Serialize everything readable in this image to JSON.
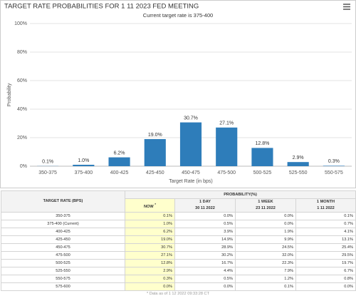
{
  "chart_data": {
    "type": "bar",
    "title": "TARGET RATE PROBABILITIES FOR 1 11 2023 FED MEETING",
    "subtitle": "Current target rate is 375-400",
    "x_label": "Target Rate (in bps)",
    "y_label": "Probability",
    "categories": [
      "350-375",
      "375-400",
      "400-425",
      "425-450",
      "450-475",
      "475-500",
      "500-525",
      "525-550",
      "550-575"
    ],
    "values": [
      0.1,
      1.0,
      6.2,
      19.0,
      30.7,
      27.1,
      12.8,
      2.9,
      0.3
    ],
    "value_labels": [
      "0.1%",
      "1.0%",
      "6.2%",
      "19.0%",
      "30.7%",
      "27.1%",
      "12.8%",
      "2.9%",
      "0.3%"
    ],
    "color": "#2e7dba",
    "ylim": [
      0,
      100
    ],
    "yticks": [
      {
        "value": 0,
        "label": "0%"
      },
      {
        "value": 20,
        "label": "20%"
      },
      {
        "value": 40,
        "label": "40%"
      },
      {
        "value": 60,
        "label": "60%"
      },
      {
        "value": 80,
        "label": "80%"
      },
      {
        "value": 100,
        "label": "100%"
      }
    ],
    "grid": true
  },
  "table": {
    "header": {
      "rate": "TARGET RATE (BPS)",
      "probability": "PROBABILITY(%)",
      "columns": [
        {
          "label": "NOW",
          "mark": "*"
        },
        {
          "label": "1 DAY",
          "date": "30 11 2022"
        },
        {
          "label": "1 WEEK",
          "date": "23 11 2022"
        },
        {
          "label": "1 MONTH",
          "date": "1 11 2022"
        }
      ]
    },
    "rows": [
      [
        "350-375",
        "0.1%",
        "0.0%",
        "0.0%",
        "0.1%"
      ],
      [
        "375-400 (Current)",
        "1.0%",
        "0.5%",
        "0.0%",
        "0.7%"
      ],
      [
        "400-425",
        "6.2%",
        "3.9%",
        "1.9%",
        "4.1%"
      ],
      [
        "425-450",
        "19.0%",
        "14.9%",
        "9.9%",
        "13.1%"
      ],
      [
        "450-475",
        "30.7%",
        "28.9%",
        "24.5%",
        "25.4%"
      ],
      [
        "475-500",
        "27.1%",
        "30.2%",
        "32.0%",
        "29.5%"
      ],
      [
        "500-525",
        "12.8%",
        "16.7%",
        "22.3%",
        "19.7%"
      ],
      [
        "525-550",
        "2.9%",
        "4.4%",
        "7.9%",
        "6.7%"
      ],
      [
        "550-575",
        "0.3%",
        "0.5%",
        "1.2%",
        "0.8%"
      ],
      [
        "575-600",
        "0.0%",
        "0.0%",
        "0.1%",
        "0.0%"
      ]
    ],
    "footnote": "* Data as of 1 12 2022 09:33:28 CT"
  }
}
